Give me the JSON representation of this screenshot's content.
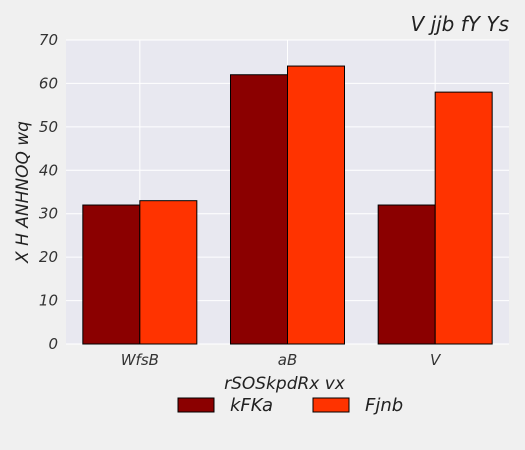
{
  "chart_data": {
    "type": "bar",
    "title": "V jjb fY Ys",
    "xlabel": "rSOSkpdRx vx",
    "ylabel": "X H  ANHNOQ wq",
    "categories": [
      "WfsB",
      "aB",
      "V"
    ],
    "ylim": [
      0,
      70
    ],
    "yticks": [
      0,
      10,
      20,
      30,
      40,
      50,
      60,
      70
    ],
    "series": [
      {
        "name": "kFKa",
        "color": "#8b0000",
        "values": [
          32,
          62,
          32
        ]
      },
      {
        "name": "Fjnb",
        "color": "#ff3300",
        "values": [
          33,
          64,
          58
        ]
      }
    ],
    "grid": true,
    "legend_position": "bottom-center",
    "plot_background": "#e8e8f0"
  }
}
